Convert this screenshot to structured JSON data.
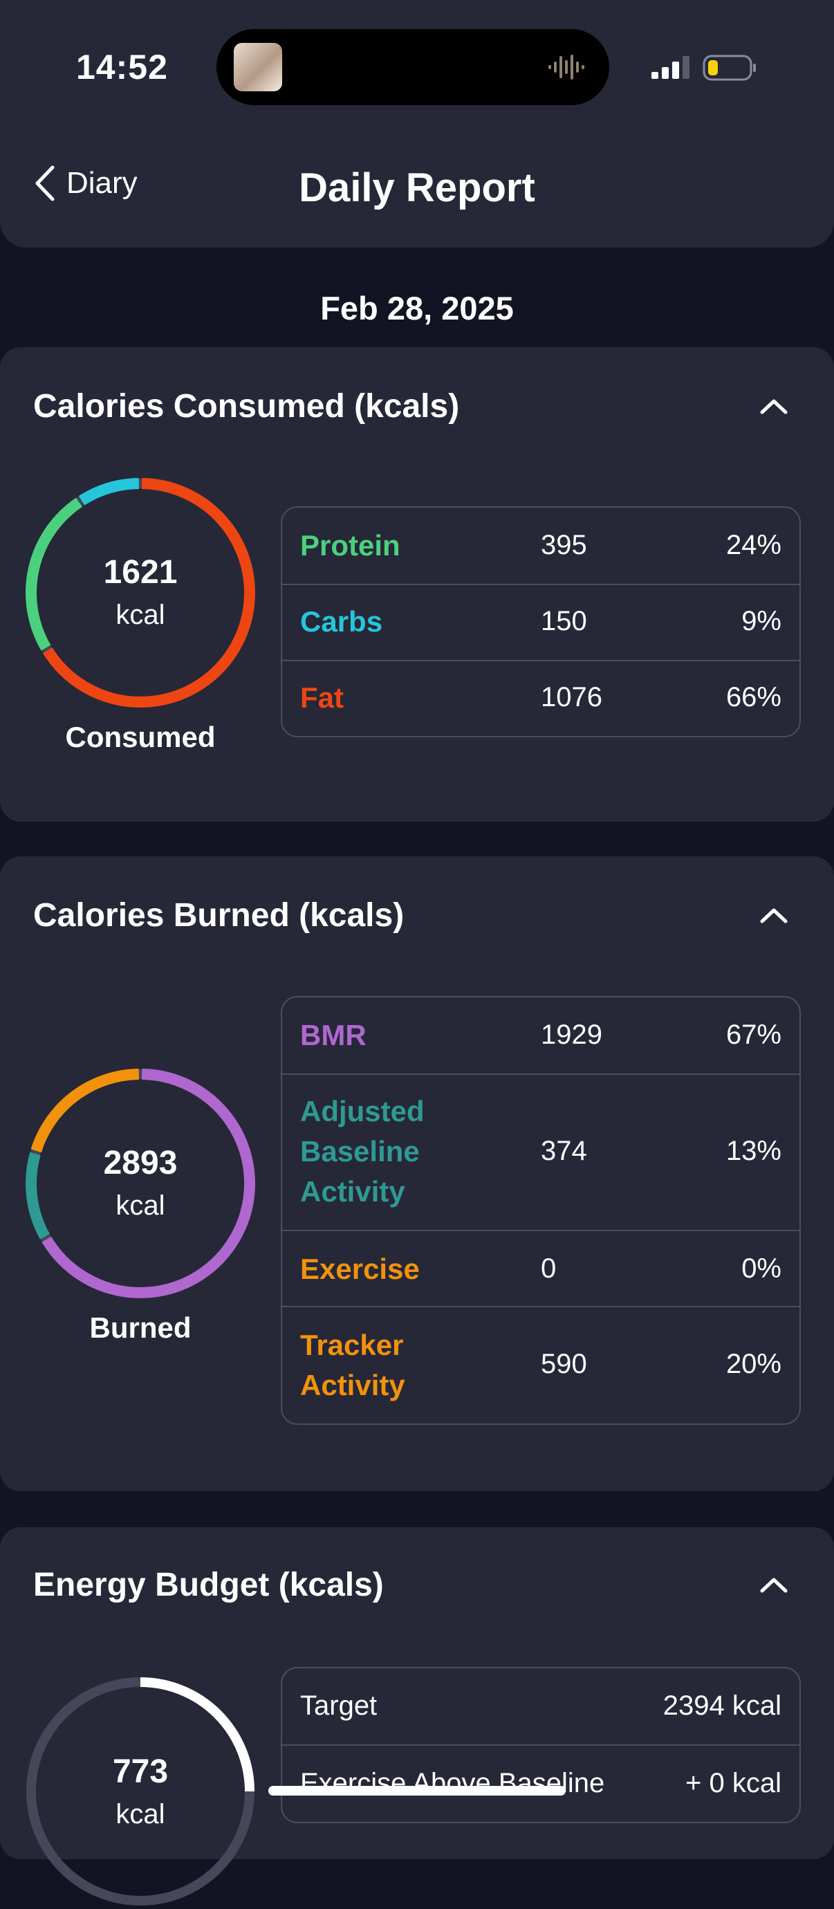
{
  "status_bar": {
    "time": "14:52"
  },
  "nav": {
    "back_label": "Diary",
    "title": "Daily Report"
  },
  "date": "Feb 28, 2025",
  "consumed": {
    "title": "Calories Consumed (kcals)",
    "total": "1621",
    "unit": "kcal",
    "caption": "Consumed",
    "rows": [
      {
        "name": "Protein",
        "value": "395",
        "pct": "24%",
        "color": "#4bd17d"
      },
      {
        "name": "Carbs",
        "value": "150",
        "pct": "9%",
        "color": "#25c6dc"
      },
      {
        "name": "Fat",
        "value": "1076",
        "pct": "66%",
        "color": "#ee4612"
      }
    ]
  },
  "burned": {
    "title": "Calories Burned (kcals)",
    "total": "2893",
    "unit": "kcal",
    "caption": "Burned",
    "rows": [
      {
        "name": "BMR",
        "value": "1929",
        "pct": "67%",
        "color": "#b067cf"
      },
      {
        "name": "Adjusted Baseline Activity",
        "value": "374",
        "pct": "13%",
        "color": "#2e9a93"
      },
      {
        "name": "Exercise",
        "value": "0",
        "pct": "0%",
        "color": "#f2920c"
      },
      {
        "name": "Tracker Activity",
        "value": "590",
        "pct": "20%",
        "color": "#f2920c"
      }
    ]
  },
  "budget": {
    "title": "Energy Budget (kcals)",
    "total": "773",
    "unit": "kcal",
    "rows": [
      {
        "name": "Target",
        "value": "2394 kcal"
      },
      {
        "name": "Exercise Above Baseline",
        "value": "+ 0 kcal"
      }
    ]
  },
  "colors": {
    "background": "#121424",
    "card": "#262838",
    "divider": "#4a4d5e",
    "ring_track": "#454858"
  }
}
